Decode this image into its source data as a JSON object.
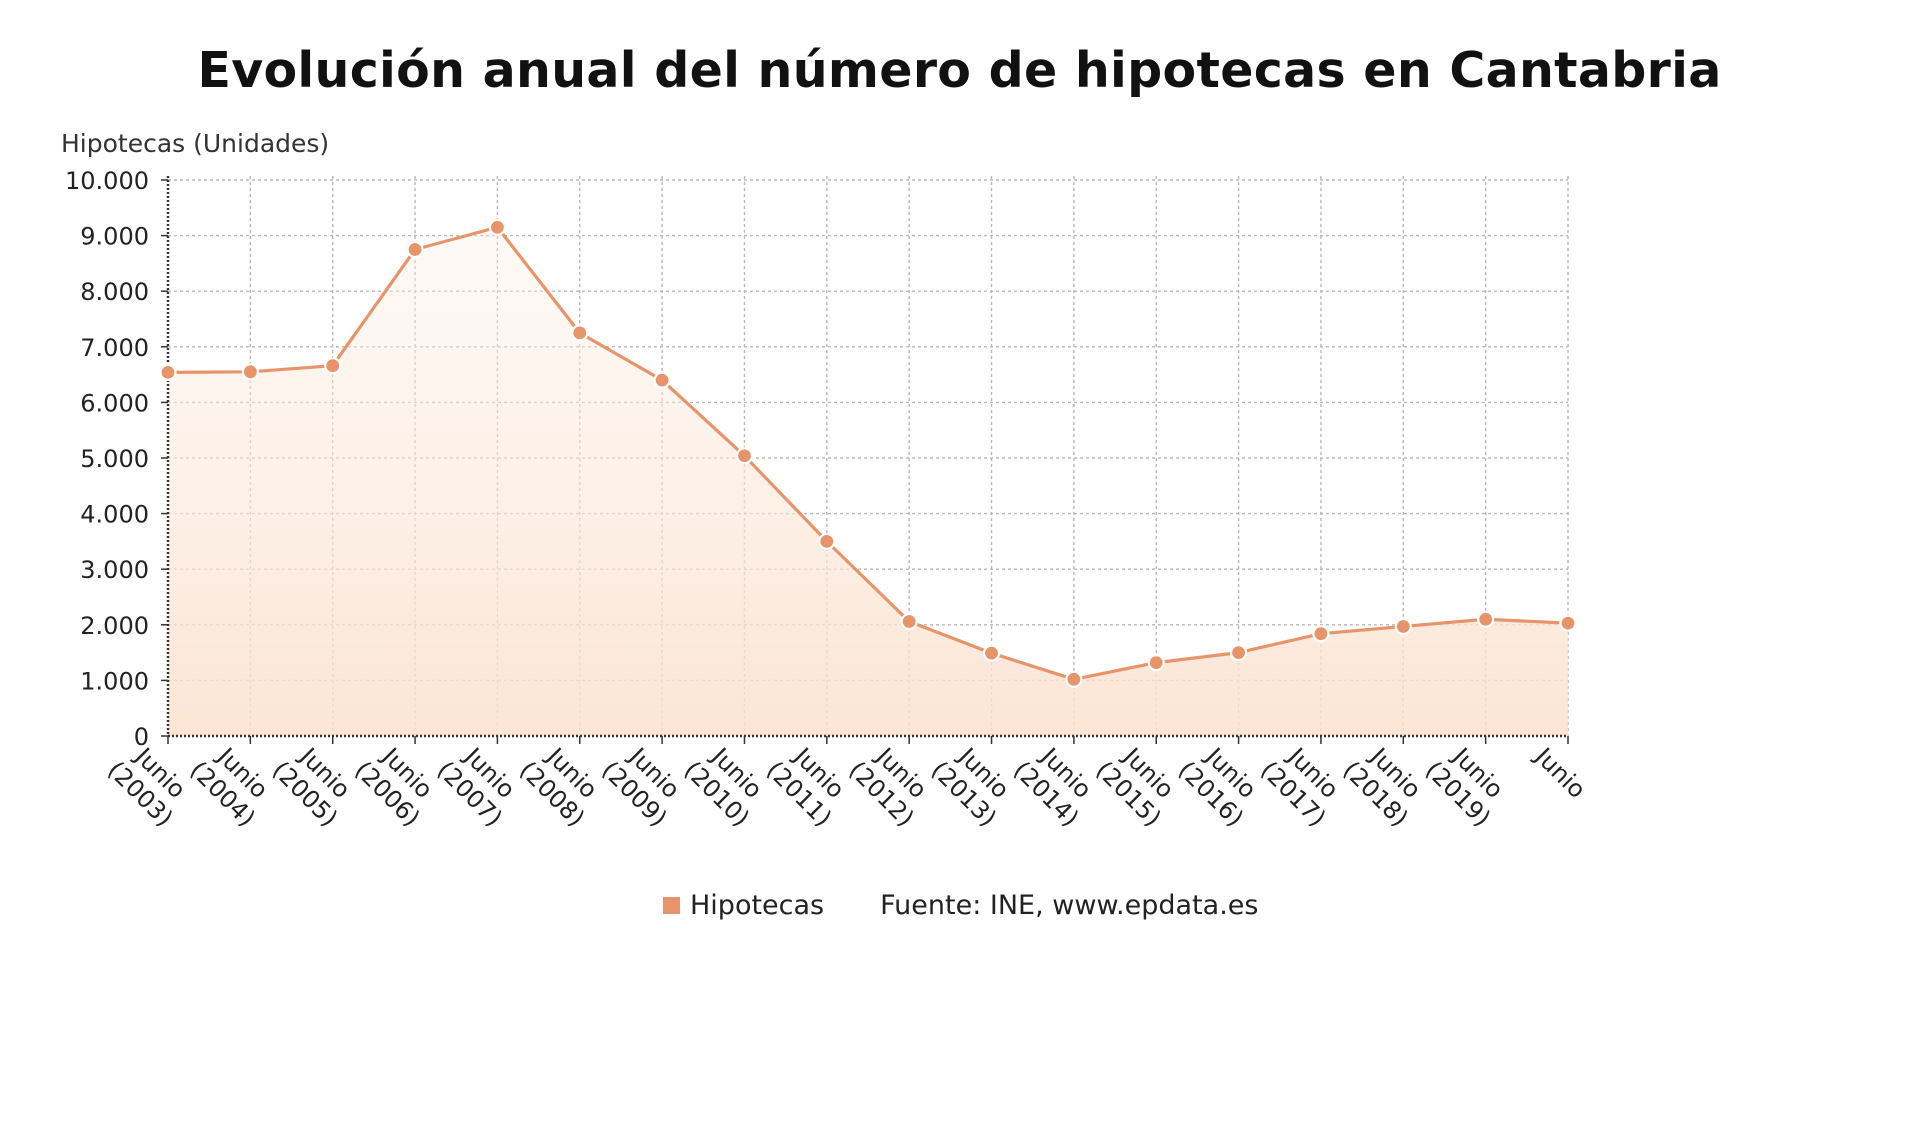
{
  "chart_data": {
    "type": "area",
    "title": "Evolución anual del número de hipotecas en Cantabria",
    "ylabel": "Hipotecas (Unidades)",
    "xlabel": "",
    "ylim": [
      0,
      10000
    ],
    "yticks": [
      "0",
      "1.000",
      "2.000",
      "3.000",
      "4.000",
      "5.000",
      "6.000",
      "7.000",
      "8.000",
      "9.000",
      "10.000"
    ],
    "categories": [
      "Junio (2003)",
      "Junio (2004)",
      "Junio (2005)",
      "Junio (2006)",
      "Junio (2007)",
      "Junio (2008)",
      "Junio (2009)",
      "Junio (2010)",
      "Junio (2011)",
      "Junio (2012)",
      "Junio (2013)",
      "Junio (2014)",
      "Junio (2015)",
      "Junio (2016)",
      "Junio (2017)",
      "Junio (2018)",
      "Junio (2019)",
      "Junio"
    ],
    "series": [
      {
        "name": "Hipotecas",
        "color": "#e8946a",
        "values": [
          6540,
          6550,
          6660,
          8750,
          9150,
          7250,
          6400,
          5040,
          3500,
          2060,
          1490,
          1020,
          1320,
          1500,
          1840,
          1970,
          2100,
          2030
        ]
      }
    ],
    "grid": true,
    "legend_position": "bottom-center",
    "source": "Fuente: INE, www.epdata.es"
  }
}
